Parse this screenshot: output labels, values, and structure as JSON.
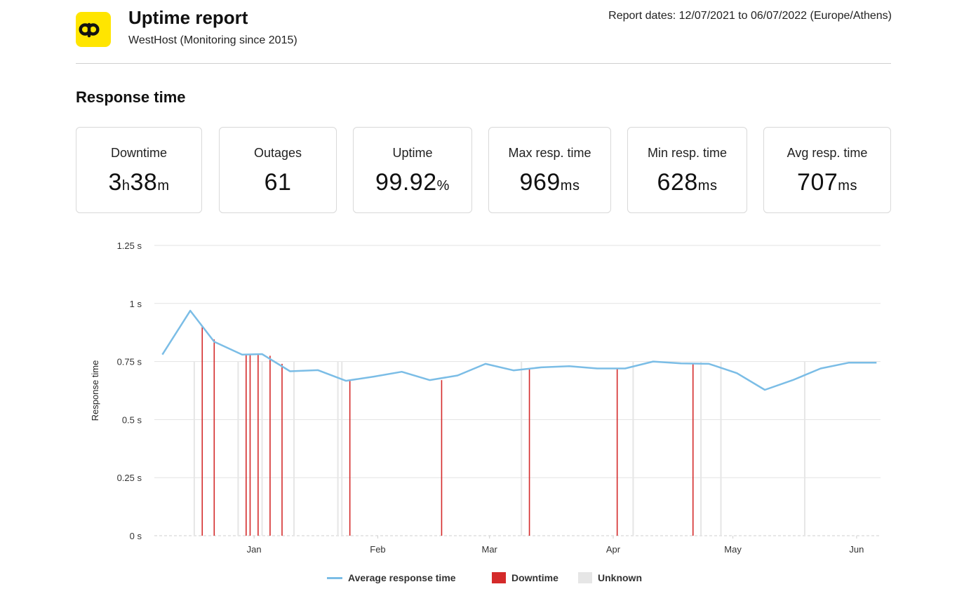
{
  "header": {
    "title": "Uptime report",
    "subtitle": "WestHost (Monitoring since 2015)",
    "report_dates": "Report dates: 12/07/2021 to 06/07/2022 (Europe/Athens)",
    "logo_letter": "p",
    "logo_color": "#ffe500"
  },
  "section_title": "Response time",
  "stats": [
    {
      "label": "Downtime",
      "parts": [
        {
          "t": "3",
          "u": false
        },
        {
          "t": "h",
          "u": true
        },
        {
          "t": "38",
          "u": false
        },
        {
          "t": "m",
          "u": true
        }
      ]
    },
    {
      "label": "Outages",
      "parts": [
        {
          "t": "61",
          "u": false
        }
      ]
    },
    {
      "label": "Uptime",
      "parts": [
        {
          "t": "99.92",
          "u": false
        },
        {
          "t": "%",
          "u": true
        }
      ]
    },
    {
      "label": "Max resp. time",
      "parts": [
        {
          "t": "969",
          "u": false
        },
        {
          "t": "ms",
          "u": true
        }
      ]
    },
    {
      "label": "Min resp. time",
      "parts": [
        {
          "t": "628",
          "u": false
        },
        {
          "t": "ms",
          "u": true
        }
      ]
    },
    {
      "label": "Avg resp. time",
      "parts": [
        {
          "t": "707",
          "u": false
        },
        {
          "t": "ms",
          "u": true
        }
      ]
    }
  ],
  "chart_data": {
    "type": "line",
    "ylabel": "Response time",
    "ylim": [
      0,
      1.25
    ],
    "yticks": [
      {
        "v": 0,
        "label": "0 s"
      },
      {
        "v": 0.25,
        "label": "0.25 s"
      },
      {
        "v": 0.5,
        "label": "0.5 s"
      },
      {
        "v": 0.75,
        "label": "0.75 s"
      },
      {
        "v": 1,
        "label": "1 s"
      },
      {
        "v": 1.25,
        "label": "1.25 s"
      }
    ],
    "xlim": [
      "2021-12-07",
      "2022-06-07"
    ],
    "xticks": [
      {
        "date": "2022-01-01",
        "label": "Jan"
      },
      {
        "date": "2022-02-01",
        "label": "Feb"
      },
      {
        "date": "2022-03-01",
        "label": "Mar"
      },
      {
        "date": "2022-04-01",
        "label": "Apr"
      },
      {
        "date": "2022-05-01",
        "label": "May"
      },
      {
        "date": "2022-06-01",
        "label": "Jun"
      }
    ],
    "grid": true,
    "series": [
      {
        "name": "Average response time",
        "color": "#7bbde6",
        "points": [
          [
            "2021-12-09",
            0.78
          ],
          [
            "2021-12-16",
            0.969
          ],
          [
            "2021-12-22",
            0.835
          ],
          [
            "2021-12-29",
            0.78
          ],
          [
            "2022-01-03",
            0.782
          ],
          [
            "2022-01-10",
            0.708
          ],
          [
            "2022-01-17",
            0.713
          ],
          [
            "2022-01-24",
            0.667
          ],
          [
            "2022-01-31",
            0.685
          ],
          [
            "2022-02-07",
            0.706
          ],
          [
            "2022-02-14",
            0.67
          ],
          [
            "2022-02-21",
            0.69
          ],
          [
            "2022-02-28",
            0.74
          ],
          [
            "2022-03-07",
            0.712
          ],
          [
            "2022-03-14",
            0.725
          ],
          [
            "2022-03-21",
            0.73
          ],
          [
            "2022-03-28",
            0.72
          ],
          [
            "2022-04-04",
            0.72
          ],
          [
            "2022-04-11",
            0.75
          ],
          [
            "2022-04-18",
            0.742
          ],
          [
            "2022-04-25",
            0.74
          ],
          [
            "2022-05-02",
            0.7
          ],
          [
            "2022-05-09",
            0.628
          ],
          [
            "2022-05-16",
            0.67
          ],
          [
            "2022-05-23",
            0.72
          ],
          [
            "2022-05-30",
            0.745
          ],
          [
            "2022-06-06",
            0.745
          ]
        ]
      }
    ],
    "downtime": {
      "name": "Downtime",
      "color": "#d42a2a",
      "events": [
        {
          "date": "2021-12-19",
          "value": 0.9
        },
        {
          "date": "2021-12-22",
          "value": 0.845
        },
        {
          "date": "2021-12-30",
          "value": 0.78
        },
        {
          "date": "2021-12-31",
          "value": 0.78
        },
        {
          "date": "2022-01-02",
          "value": 0.78
        },
        {
          "date": "2022-01-05",
          "value": 0.775
        },
        {
          "date": "2022-01-08",
          "value": 0.74
        },
        {
          "date": "2022-01-25",
          "value": 0.67
        },
        {
          "date": "2022-02-17",
          "value": 0.67
        },
        {
          "date": "2022-03-11",
          "value": 0.72
        },
        {
          "date": "2022-04-02",
          "value": 0.72
        },
        {
          "date": "2022-04-21",
          "value": 0.74
        }
      ]
    },
    "unknown": {
      "name": "Unknown",
      "color": "#e6e6e6",
      "dates": [
        "2021-12-17",
        "2021-12-28",
        "2022-01-03",
        "2022-01-11",
        "2022-01-22",
        "2022-01-23",
        "2022-03-09",
        "2022-04-06",
        "2022-04-23",
        "2022-04-28",
        "2022-05-19"
      ]
    }
  }
}
